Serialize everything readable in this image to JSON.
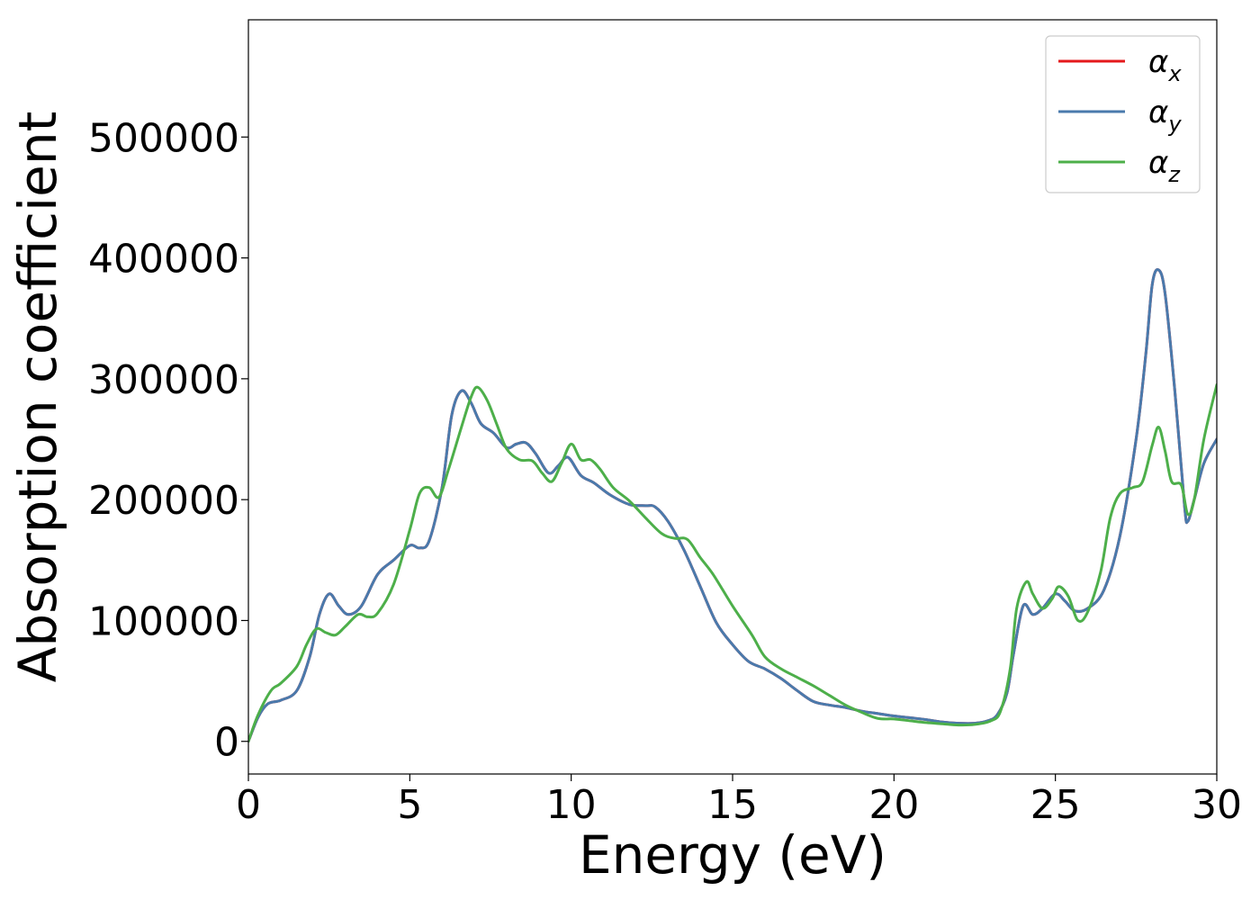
{
  "chart_data": {
    "type": "line",
    "title": "",
    "xlabel": "Energy (eV)",
    "ylabel": "Absorption coefficient",
    "xlim": [
      0,
      30
    ],
    "ylim": [
      -27000,
      597000
    ],
    "xticks": [
      0,
      5,
      10,
      15,
      20,
      25,
      30
    ],
    "yticks": [
      0,
      100000,
      200000,
      300000,
      400000,
      500000
    ],
    "grid": false,
    "legend_position": "top-right",
    "series": [
      {
        "name": "αx",
        "color": "#e41a1c",
        "x": [
          0,
          0.3,
          0.6,
          1.0,
          1.5,
          1.9,
          2.2,
          2.5,
          2.8,
          3.1,
          3.5,
          4.0,
          4.5,
          5.0,
          5.3,
          5.6,
          6.0,
          6.3,
          6.6,
          6.9,
          7.2,
          7.6,
          8.0,
          8.3,
          8.6,
          8.9,
          9.3,
          9.6,
          9.9,
          10.3,
          10.7,
          11.2,
          11.8,
          12.3,
          12.6,
          13.0,
          13.5,
          14.0,
          14.5,
          15.0,
          15.5,
          16.0,
          16.5,
          17.0,
          17.5,
          18.0,
          18.5,
          19.0,
          19.5,
          20.0,
          20.5,
          21.0,
          21.5,
          22.0,
          22.5,
          22.9,
          23.2,
          23.5,
          23.7,
          24.0,
          24.3,
          24.6,
          25.0,
          25.3,
          25.6,
          26.0,
          26.5,
          27.0,
          27.5,
          27.8,
          28.0,
          28.2,
          28.4,
          28.7,
          29.0,
          29.1,
          29.3,
          29.6,
          30.0
        ],
        "y": [
          0,
          20000,
          31000,
          34000,
          42000,
          70000,
          105000,
          122000,
          112000,
          105000,
          112000,
          138000,
          150000,
          162000,
          160000,
          166000,
          210000,
          270000,
          290000,
          280000,
          263000,
          255000,
          243000,
          246000,
          247000,
          238000,
          222000,
          228000,
          235000,
          220000,
          214000,
          204000,
          196000,
          195000,
          194000,
          182000,
          158000,
          128000,
          98000,
          80000,
          66000,
          60000,
          52000,
          42000,
          33000,
          30000,
          28000,
          25000,
          23000,
          21000,
          19500,
          18000,
          16000,
          15000,
          15000,
          17000,
          22000,
          40000,
          72000,
          112000,
          105000,
          110000,
          122000,
          116000,
          108000,
          110000,
          125000,
          170000,
          250000,
          320000,
          378000,
          390000,
          370000,
          290000,
          195000,
          182000,
          200000,
          230000,
          250000
        ]
      },
      {
        "name": "αy",
        "color": "#4a7aac",
        "x": [
          0,
          0.3,
          0.6,
          1.0,
          1.5,
          1.9,
          2.2,
          2.5,
          2.8,
          3.1,
          3.5,
          4.0,
          4.5,
          5.0,
          5.3,
          5.6,
          6.0,
          6.3,
          6.6,
          6.9,
          7.2,
          7.6,
          8.0,
          8.3,
          8.6,
          8.9,
          9.3,
          9.6,
          9.9,
          10.3,
          10.7,
          11.2,
          11.8,
          12.3,
          12.6,
          13.0,
          13.5,
          14.0,
          14.5,
          15.0,
          15.5,
          16.0,
          16.5,
          17.0,
          17.5,
          18.0,
          18.5,
          19.0,
          19.5,
          20.0,
          20.5,
          21.0,
          21.5,
          22.0,
          22.5,
          22.9,
          23.2,
          23.5,
          23.7,
          24.0,
          24.3,
          24.6,
          25.0,
          25.3,
          25.6,
          26.0,
          26.5,
          27.0,
          27.5,
          27.8,
          28.0,
          28.2,
          28.4,
          28.7,
          29.0,
          29.1,
          29.3,
          29.6,
          30.0
        ],
        "y": [
          0,
          20000,
          31000,
          34000,
          42000,
          70000,
          105000,
          122000,
          112000,
          105000,
          112000,
          138000,
          150000,
          162000,
          160000,
          166000,
          210000,
          270000,
          290000,
          280000,
          263000,
          255000,
          243000,
          246000,
          247000,
          238000,
          222000,
          228000,
          235000,
          220000,
          214000,
          204000,
          196000,
          195000,
          194000,
          182000,
          158000,
          128000,
          98000,
          80000,
          66000,
          60000,
          52000,
          42000,
          33000,
          30000,
          28000,
          25000,
          23000,
          21000,
          19500,
          18000,
          16000,
          15000,
          15000,
          17000,
          22000,
          40000,
          72000,
          112000,
          105000,
          110000,
          122000,
          116000,
          108000,
          110000,
          125000,
          170000,
          250000,
          320000,
          378000,
          390000,
          370000,
          290000,
          195000,
          182000,
          200000,
          230000,
          250000
        ]
      },
      {
        "name": "αz",
        "color": "#4daf4a",
        "x": [
          0,
          0.3,
          0.7,
          1.0,
          1.5,
          1.8,
          2.1,
          2.4,
          2.7,
          3.0,
          3.4,
          3.7,
          4.0,
          4.5,
          5.0,
          5.3,
          5.6,
          5.9,
          6.2,
          6.6,
          6.9,
          7.1,
          7.4,
          7.7,
          8.0,
          8.4,
          8.8,
          9.1,
          9.4,
          9.7,
          10.0,
          10.3,
          10.6,
          10.9,
          11.3,
          11.8,
          12.3,
          12.8,
          13.2,
          13.6,
          14.0,
          14.4,
          15.0,
          15.6,
          16.0,
          16.5,
          17.0,
          17.5,
          18.0,
          18.5,
          19.0,
          19.5,
          20.0,
          20.5,
          21.0,
          21.5,
          22.0,
          22.5,
          23.0,
          23.3,
          23.6,
          23.8,
          24.1,
          24.3,
          24.6,
          24.9,
          25.1,
          25.4,
          25.7,
          26.0,
          26.4,
          26.7,
          27.0,
          27.4,
          27.7,
          28.0,
          28.2,
          28.4,
          28.6,
          28.9,
          29.1,
          29.3,
          29.6,
          30.0
        ],
        "y": [
          0,
          22000,
          42000,
          48000,
          62000,
          80000,
          93000,
          90000,
          88000,
          95000,
          105000,
          103000,
          106000,
          130000,
          175000,
          205000,
          210000,
          202000,
          225000,
          260000,
          285000,
          293000,
          282000,
          262000,
          242000,
          233000,
          232000,
          222000,
          215000,
          230000,
          246000,
          233000,
          233000,
          225000,
          210000,
          199000,
          185000,
          172000,
          168000,
          167000,
          152000,
          138000,
          112000,
          88000,
          70000,
          60000,
          53000,
          46000,
          38000,
          30000,
          24000,
          19000,
          18500,
          17000,
          15500,
          14500,
          13500,
          14000,
          17000,
          25000,
          60000,
          110000,
          132000,
          122000,
          110000,
          118000,
          128000,
          120000,
          100000,
          107000,
          140000,
          185000,
          205000,
          210000,
          215000,
          245000,
          260000,
          240000,
          215000,
          212000,
          188000,
          200000,
          250000,
          295000
        ]
      }
    ]
  }
}
